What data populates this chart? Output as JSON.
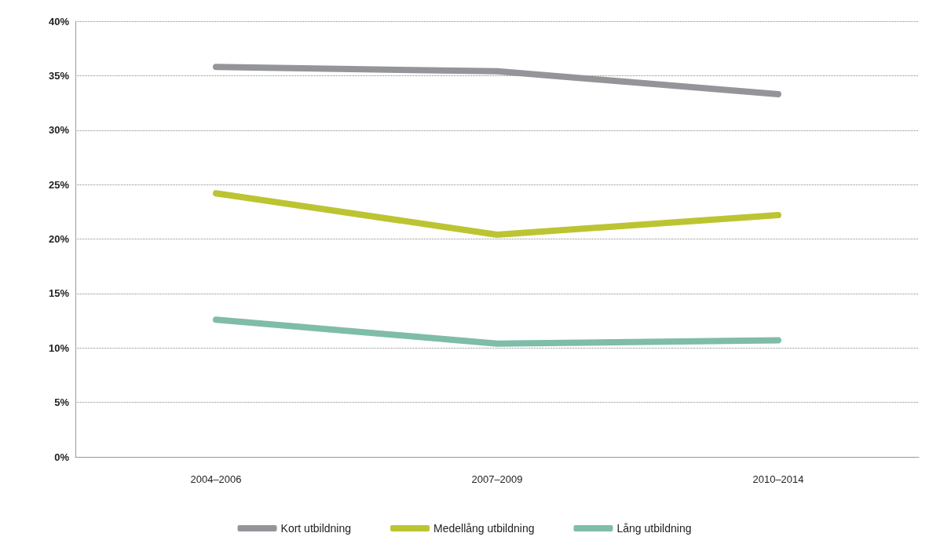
{
  "chart_data": {
    "type": "line",
    "categories": [
      "2004–2006",
      "2007–2009",
      "2010–2014"
    ],
    "series": [
      {
        "name": "Kort utbildning",
        "color": "#939598",
        "values": [
          35.8,
          35.4,
          33.3
        ]
      },
      {
        "name": "Medellång utbildning",
        "color": "#bcc432",
        "values": [
          24.2,
          20.4,
          22.2
        ]
      },
      {
        "name": "Lång utbildning",
        "color": "#7fbcaa",
        "values": [
          12.6,
          10.4,
          10.7
        ]
      }
    ],
    "ylim": [
      0,
      40
    ],
    "yticks": [
      {
        "value": 0,
        "label": "0%"
      },
      {
        "value": 5,
        "label": "5%"
      },
      {
        "value": 10,
        "label": "10%"
      },
      {
        "value": 15,
        "label": "15%"
      },
      {
        "value": 20,
        "label": "20%"
      },
      {
        "value": 25,
        "label": "25%"
      },
      {
        "value": 30,
        "label": "30%"
      },
      {
        "value": 35,
        "label": "35%"
      },
      {
        "value": 40,
        "label": "40%"
      }
    ],
    "grid": "y",
    "legend": "bottom",
    "line_style": "solid"
  }
}
